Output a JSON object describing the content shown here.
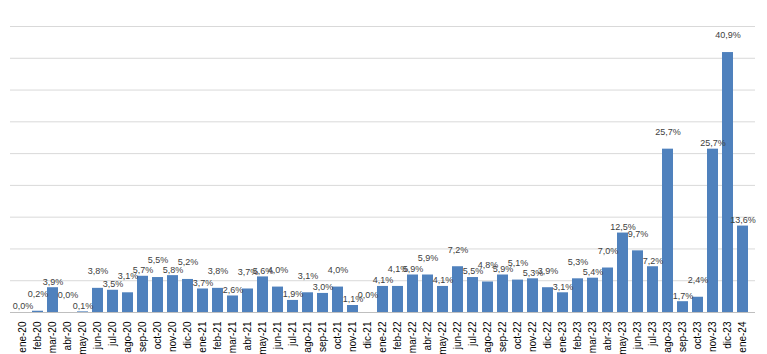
{
  "chart_data": {
    "type": "bar",
    "categories": [
      "ene-20",
      "feb-20",
      "mar-20",
      "abr-20",
      "may-20",
      "jun-20",
      "jul-20",
      "ago-20",
      "sep-20",
      "oct-20",
      "nov-20",
      "dic-20",
      "ene-21",
      "feb-21",
      "mar-21",
      "abr-21",
      "may-21",
      "jun-21",
      "jul-21",
      "ago-21",
      "sep-21",
      "oct-21",
      "nov-21",
      "dic-21",
      "ene-22",
      "feb-22",
      "mar-22",
      "abr-22",
      "may-22",
      "jun-22",
      "jul-22",
      "ago-22",
      "sep-22",
      "oct-22",
      "nov-22",
      "dic-22",
      "ene-23",
      "feb-23",
      "mar-23",
      "abr-23",
      "may-23",
      "jun-23",
      "jul-23",
      "ago-23",
      "sep-23",
      "oct-23",
      "nov-23",
      "dic-23",
      "ene-24"
    ],
    "values": [
      0.0,
      0.2,
      3.9,
      0.0,
      0.1,
      3.8,
      3.5,
      3.1,
      5.7,
      5.5,
      5.8,
      5.2,
      3.7,
      3.8,
      2.6,
      3.7,
      5.6,
      4.0,
      1.9,
      3.1,
      3.0,
      4.0,
      1.1,
      0.0,
      4.1,
      4.1,
      5.9,
      5.9,
      4.1,
      7.2,
      5.5,
      4.8,
      5.9,
      5.1,
      5.3,
      3.9,
      3.1,
      5.3,
      5.4,
      7.0,
      12.5,
      9.7,
      7.2,
      25.7,
      1.7,
      2.4,
      25.7,
      40.9,
      13.6
    ],
    "value_labels": [
      "0,0%",
      "0,2%",
      "3,9%",
      "0,0%",
      "0,1%",
      "3,8%",
      "3,5%",
      "3,1%",
      "5,7%",
      "5,5%",
      "5,8%",
      "5,2%",
      "3,7%",
      "3,8%",
      "2,6%",
      "3,7%",
      "5,6%",
      "4,0%",
      "1,9%",
      "3,1%",
      "3,0%",
      "4,0%",
      "1,1%",
      "0,0%",
      "4,1%",
      "4,1%",
      "5,9%",
      "5,9%",
      "4,1%",
      "7,2%",
      "5,5%",
      "4,8%",
      "5,9%",
      "5,1%",
      "5,3%",
      "3,9%",
      "3,1%",
      "5,3%",
      "5,4%",
      "7,0%",
      "12,5%",
      "9,7%",
      "7,2%",
      "25,7%",
      "1,7%",
      "2,4%",
      "25,7%",
      "40,9%",
      "13,6%"
    ],
    "color": "#4f81bd",
    "ylim": [
      0,
      45
    ],
    "yticks": [
      0,
      5,
      10,
      15,
      20,
      25,
      30,
      35,
      40,
      45
    ],
    "grid": true,
    "data_labels": true,
    "tick_labels": "x"
  }
}
